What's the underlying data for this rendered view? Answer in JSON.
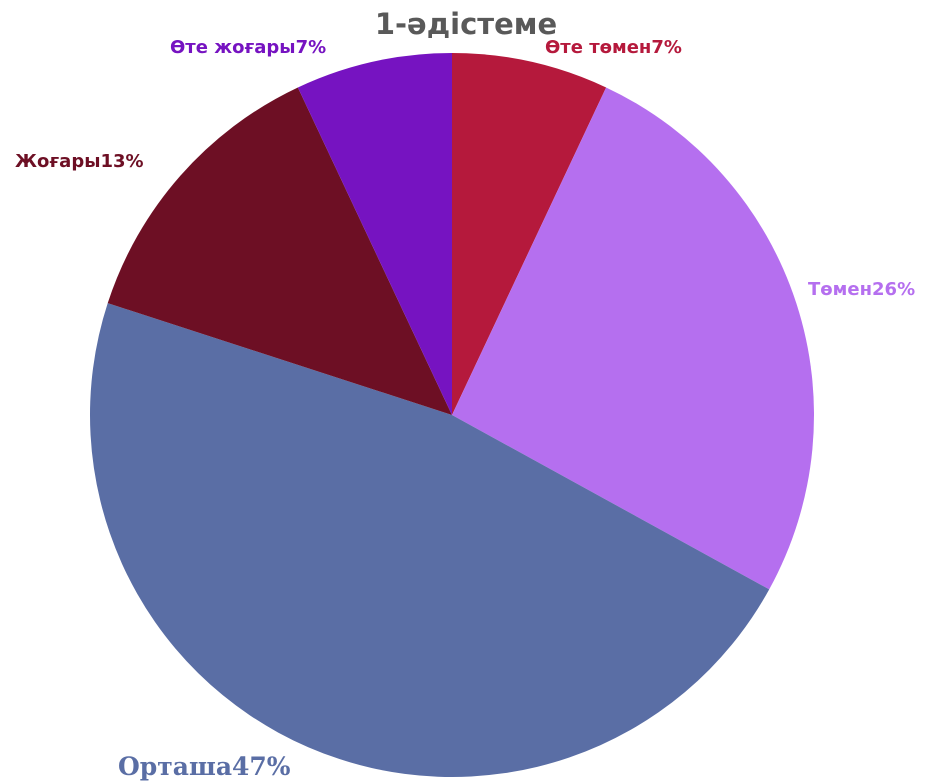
{
  "chart_data": {
    "type": "pie",
    "title": "1-әдістеме",
    "categories": [
      "Өте төмен",
      "Төмен",
      "Орташа",
      "Жоғары",
      "Өте жоғары"
    ],
    "values": [
      7,
      26,
      47,
      13,
      7
    ],
    "value_labels": [
      "7%",
      "26%",
      "47%",
      "13%",
      "7%"
    ],
    "colors": [
      "#b5193c",
      "#b56fef",
      "#5a6ea5",
      "#6d0f24",
      "#7613c1"
    ]
  }
}
